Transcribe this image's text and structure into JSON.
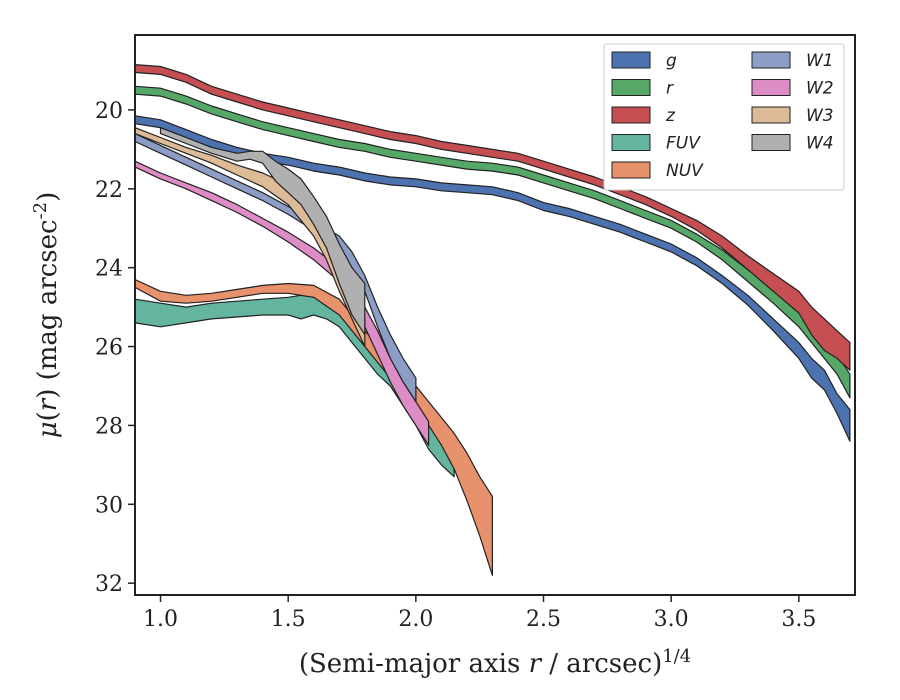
{
  "chart_data": {
    "type": "area",
    "xlabel": "(Semi-major axis r / arcsec)^{1/4}",
    "ylabel": "μ(r) (mag arcsec^{-2})",
    "xlim": [
      0.9,
      3.72
    ],
    "ylim": [
      32.3,
      18.1
    ],
    "y_inverted": true,
    "x_ticks": [
      "1.0",
      "1.5",
      "2.0",
      "2.5",
      "3.0",
      "3.5"
    ],
    "y_ticks": [
      "20",
      "22",
      "24",
      "26",
      "28",
      "30",
      "32"
    ],
    "legend_position": "top-right",
    "legend_columns": 2,
    "series": [
      {
        "name": "g",
        "color": "#4c72b0",
        "x": [
          0.9,
          1.0,
          1.1,
          1.2,
          1.3,
          1.4,
          1.5,
          1.6,
          1.7,
          1.8,
          1.9,
          2.0,
          2.1,
          2.2,
          2.3,
          2.4,
          2.5,
          2.6,
          2.7,
          2.8,
          2.9,
          3.0,
          3.1,
          3.2,
          3.3,
          3.4,
          3.5,
          3.55,
          3.6,
          3.65,
          3.7
        ],
        "lower": [
          20.15,
          20.25,
          20.5,
          20.75,
          20.95,
          21.1,
          21.2,
          21.35,
          21.45,
          21.6,
          21.7,
          21.75,
          21.85,
          21.9,
          21.95,
          22.1,
          22.35,
          22.5,
          22.7,
          22.9,
          23.15,
          23.4,
          23.75,
          24.2,
          24.7,
          25.3,
          25.9,
          26.3,
          26.6,
          27.2,
          27.6
        ],
        "upper": [
          20.35,
          20.45,
          20.7,
          20.95,
          21.15,
          21.3,
          21.4,
          21.55,
          21.65,
          21.8,
          21.9,
          21.95,
          22.05,
          22.1,
          22.15,
          22.3,
          22.55,
          22.7,
          22.9,
          23.1,
          23.35,
          23.6,
          23.95,
          24.4,
          24.95,
          25.6,
          26.3,
          26.8,
          27.1,
          27.7,
          28.4
        ]
      },
      {
        "name": "r",
        "color": "#55a868",
        "x": [
          0.9,
          1.0,
          1.1,
          1.2,
          1.3,
          1.4,
          1.5,
          1.6,
          1.7,
          1.8,
          1.9,
          2.0,
          2.1,
          2.2,
          2.3,
          2.4,
          2.5,
          2.6,
          2.7,
          2.8,
          2.9,
          3.0,
          3.1,
          3.2,
          3.3,
          3.4,
          3.5,
          3.55,
          3.6,
          3.65,
          3.7
        ],
        "lower": [
          19.4,
          19.45,
          19.65,
          19.9,
          20.1,
          20.3,
          20.45,
          20.6,
          20.75,
          20.85,
          21.0,
          21.1,
          21.2,
          21.3,
          21.35,
          21.45,
          21.65,
          21.85,
          22.05,
          22.3,
          22.55,
          22.8,
          23.15,
          23.55,
          24.05,
          24.55,
          25.05,
          25.4,
          25.8,
          26.2,
          26.7
        ],
        "upper": [
          19.6,
          19.65,
          19.85,
          20.1,
          20.3,
          20.5,
          20.65,
          20.8,
          20.95,
          21.05,
          21.2,
          21.3,
          21.4,
          21.5,
          21.55,
          21.65,
          21.85,
          22.05,
          22.25,
          22.5,
          22.75,
          23.0,
          23.35,
          23.8,
          24.35,
          24.9,
          25.5,
          25.9,
          26.3,
          26.7,
          27.3
        ]
      },
      {
        "name": "z",
        "color": "#c44e52",
        "x": [
          0.9,
          1.0,
          1.1,
          1.2,
          1.3,
          1.4,
          1.5,
          1.6,
          1.7,
          1.8,
          1.9,
          2.0,
          2.1,
          2.2,
          2.3,
          2.4,
          2.5,
          2.6,
          2.7,
          2.8,
          2.9,
          3.0,
          3.1,
          3.2,
          3.3,
          3.4,
          3.5,
          3.55,
          3.6,
          3.65,
          3.7
        ],
        "lower": [
          18.85,
          18.9,
          19.1,
          19.4,
          19.6,
          19.8,
          19.95,
          20.1,
          20.25,
          20.4,
          20.55,
          20.65,
          20.8,
          20.9,
          21.0,
          21.1,
          21.3,
          21.5,
          21.7,
          21.95,
          22.2,
          22.5,
          22.8,
          23.2,
          23.7,
          24.15,
          24.6,
          25.0,
          25.3,
          25.6,
          25.9
        ],
        "upper": [
          19.05,
          19.1,
          19.3,
          19.6,
          19.8,
          20.0,
          20.15,
          20.3,
          20.45,
          20.6,
          20.75,
          20.85,
          21.0,
          21.1,
          21.2,
          21.3,
          21.5,
          21.7,
          21.9,
          22.15,
          22.4,
          22.7,
          23.05,
          23.5,
          24.05,
          24.6,
          25.15,
          25.7,
          26.1,
          26.3,
          26.6
        ]
      },
      {
        "name": "FUV",
        "color": "#64b5a0",
        "x": [
          0.9,
          1.0,
          1.1,
          1.2,
          1.3,
          1.4,
          1.5,
          1.55,
          1.6,
          1.65,
          1.7,
          1.75,
          1.8,
          1.85,
          1.9,
          1.95,
          2.0,
          2.05,
          2.1,
          2.15
        ],
        "lower": [
          24.8,
          24.9,
          25.0,
          24.9,
          24.85,
          24.8,
          24.75,
          24.7,
          24.75,
          24.8,
          25.0,
          25.3,
          25.6,
          26.0,
          26.4,
          26.9,
          27.4,
          27.8,
          28.3,
          28.6
        ],
        "upper": [
          25.4,
          25.5,
          25.4,
          25.3,
          25.25,
          25.2,
          25.2,
          25.3,
          25.2,
          25.3,
          25.5,
          25.9,
          26.3,
          26.7,
          27.0,
          27.5,
          28.0,
          28.6,
          29.0,
          29.3
        ]
      },
      {
        "name": "NUV",
        "color": "#e8916d",
        "x": [
          0.9,
          1.0,
          1.1,
          1.2,
          1.3,
          1.4,
          1.5,
          1.6,
          1.7,
          1.8,
          1.9,
          2.0,
          2.1,
          2.15,
          2.2,
          2.25,
          2.3
        ],
        "lower": [
          24.3,
          24.6,
          24.7,
          24.65,
          24.55,
          24.45,
          24.4,
          24.45,
          24.8,
          25.6,
          26.3,
          27.0,
          27.8,
          28.2,
          28.7,
          29.3,
          29.8
        ],
        "upper": [
          24.5,
          24.85,
          24.9,
          24.85,
          24.75,
          24.65,
          24.65,
          24.75,
          25.2,
          26.0,
          26.8,
          27.5,
          28.5,
          29.1,
          29.9,
          30.8,
          31.8
        ]
      },
      {
        "name": "W1",
        "color": "#8c9dc6",
        "x": [
          0.9,
          1.0,
          1.1,
          1.2,
          1.3,
          1.4,
          1.5,
          1.6,
          1.7,
          1.75,
          1.8,
          1.85,
          1.9,
          1.95,
          2.0
        ],
        "lower": [
          20.6,
          20.9,
          21.2,
          21.5,
          21.8,
          22.1,
          22.45,
          22.8,
          23.2,
          23.6,
          24.2,
          25.0,
          25.7,
          26.3,
          26.8
        ],
        "upper": [
          20.8,
          21.1,
          21.4,
          21.7,
          22.0,
          22.3,
          22.65,
          23.05,
          23.5,
          24.0,
          24.6,
          25.5,
          26.3,
          26.9,
          27.4
        ]
      },
      {
        "name": "W2",
        "color": "#dd8cc5",
        "x": [
          0.9,
          1.0,
          1.1,
          1.2,
          1.3,
          1.4,
          1.5,
          1.6,
          1.7,
          1.75,
          1.8,
          1.85,
          1.9,
          1.95,
          2.0,
          2.05
        ],
        "lower": [
          21.3,
          21.6,
          21.85,
          22.1,
          22.4,
          22.75,
          23.1,
          23.5,
          24.0,
          24.4,
          25.0,
          25.6,
          26.3,
          26.9,
          27.4,
          27.9
        ],
        "upper": [
          21.45,
          21.75,
          22.0,
          22.3,
          22.6,
          22.95,
          23.35,
          23.8,
          24.35,
          24.8,
          25.5,
          26.2,
          26.9,
          27.5,
          28.0,
          28.5
        ]
      },
      {
        "name": "W3",
        "color": "#dcbb96",
        "x": [
          0.9,
          1.0,
          1.1,
          1.2,
          1.3,
          1.4,
          1.5,
          1.6,
          1.65,
          1.7,
          1.75,
          1.8
        ],
        "lower": [
          20.45,
          20.7,
          20.95,
          21.15,
          21.4,
          21.6,
          21.9,
          22.5,
          23.0,
          23.8,
          24.5,
          25.3
        ],
        "upper": [
          20.6,
          20.85,
          21.1,
          21.35,
          21.65,
          21.95,
          22.4,
          23.2,
          23.8,
          24.6,
          25.3,
          26.0
        ]
      },
      {
        "name": "W4",
        "color": "#b0b0b0",
        "x": [
          1.0,
          1.1,
          1.2,
          1.3,
          1.35,
          1.4,
          1.45,
          1.5,
          1.55,
          1.6,
          1.65,
          1.7,
          1.75,
          1.8
        ],
        "lower": [
          20.45,
          20.7,
          20.95,
          21.1,
          21.05,
          21.05,
          21.3,
          21.5,
          21.75,
          22.2,
          22.7,
          23.4,
          24.0,
          24.4
        ],
        "upper": [
          20.6,
          20.85,
          21.1,
          21.3,
          21.25,
          21.35,
          21.8,
          22.1,
          22.4,
          22.9,
          23.5,
          24.4,
          25.2,
          25.7
        ]
      }
    ]
  }
}
